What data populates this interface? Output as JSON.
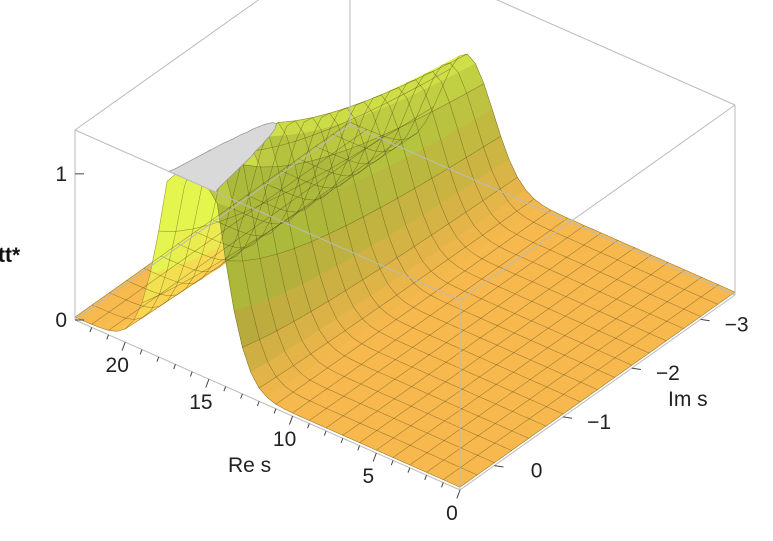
{
  "chart_data": {
    "type": "surface3d",
    "xlabel": "Re s",
    "ylabel": "Im s",
    "zlabel": "tt*",
    "xlim": [
      0,
      23
    ],
    "ylim": [
      0.5,
      -3.5
    ],
    "zlim": [
      0,
      1.3
    ],
    "x_ticks": [
      {
        "value": 0,
        "label": "0"
      },
      {
        "value": 5,
        "label": "5"
      },
      {
        "value": 10,
        "label": "10"
      },
      {
        "value": 15,
        "label": "15"
      },
      {
        "value": 20,
        "label": "20"
      }
    ],
    "y_ticks": [
      {
        "value": 0,
        "label": "0"
      },
      {
        "value": -1,
        "label": "−1"
      },
      {
        "value": -2,
        "label": "−2"
      },
      {
        "value": -3,
        "label": "−3"
      }
    ],
    "z_ticks": [
      {
        "value": 0,
        "label": "0"
      },
      {
        "value": 1,
        "label": "1"
      }
    ],
    "surface": {
      "description_values": "resonance ridge",
      "ridge_center_re": 16,
      "ridge_width_re": 2.2,
      "peak_value_clipped": 1.3,
      "baseline_value": 0.02
    },
    "colors": {
      "surface_low": "#f8b84e",
      "surface_high": "#d7e84a",
      "clip_cap": "#d9d9d9",
      "box": "#bbbbbb"
    }
  }
}
